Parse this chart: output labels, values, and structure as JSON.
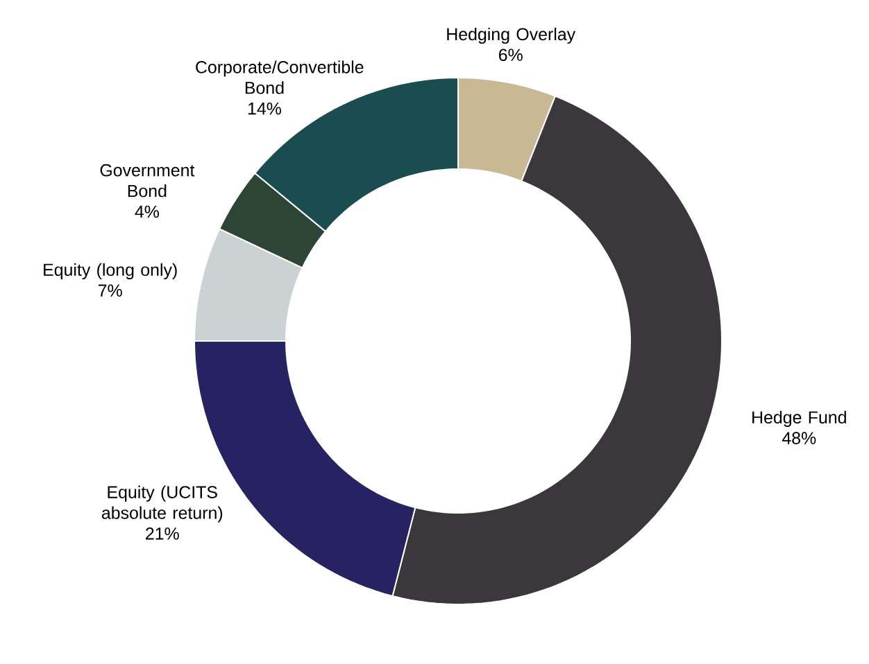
{
  "chart_data": {
    "type": "donut",
    "categories": [
      "Hedging Overlay",
      "Hedge Fund",
      "Equity (UCITS absolute return)",
      "Equity (long only)",
      "Government Bond",
      "Corporate/Convertible Bond"
    ],
    "values": [
      6,
      48,
      21,
      7,
      4,
      14
    ],
    "value_labels": [
      "6%",
      "48%",
      "21%",
      "7%",
      "4%",
      "14%"
    ],
    "colors": [
      "#c8b994",
      "#3a383b",
      "#272262",
      "#ccd1d3",
      "#2d4535",
      "#1a4d50"
    ]
  }
}
